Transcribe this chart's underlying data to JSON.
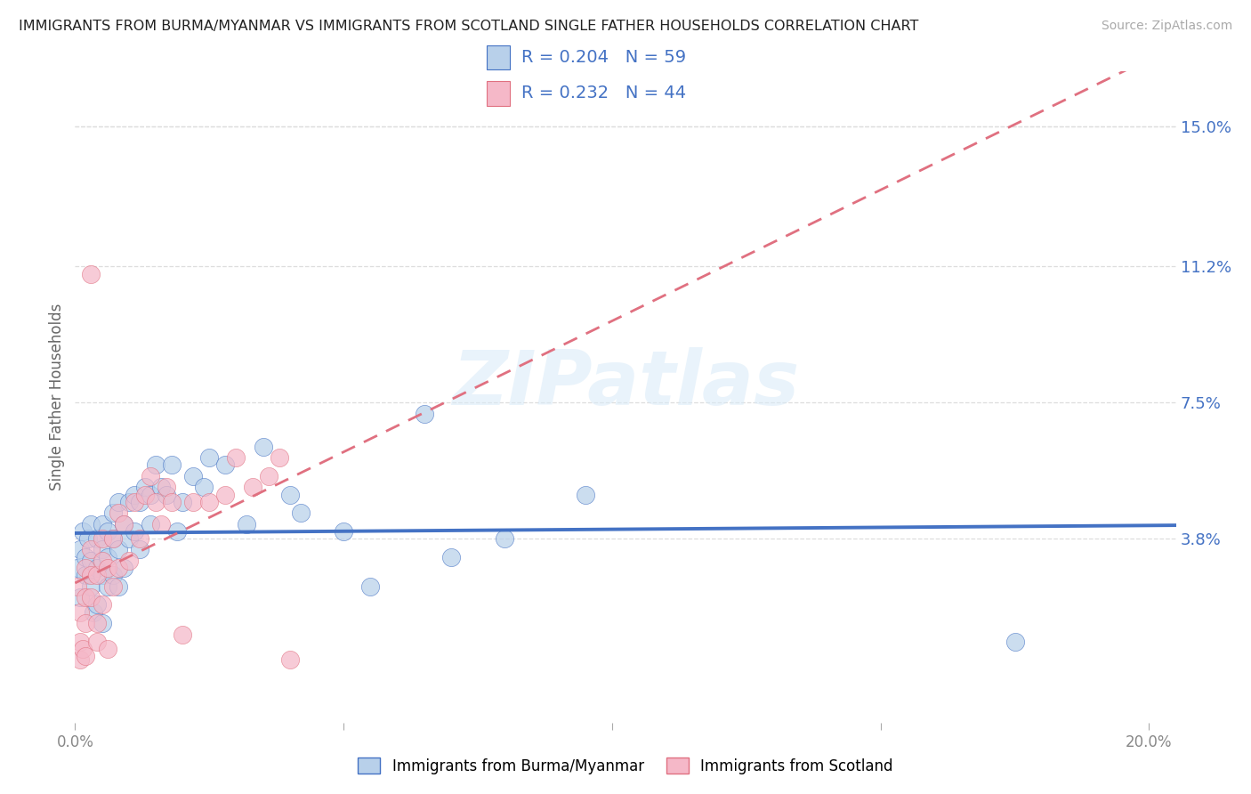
{
  "title": "IMMIGRANTS FROM BURMA/MYANMAR VS IMMIGRANTS FROM SCOTLAND SINGLE FATHER HOUSEHOLDS CORRELATION CHART",
  "source": "Source: ZipAtlas.com",
  "ylabel": "Single Father Households",
  "ytick_vals": [
    0.038,
    0.075,
    0.112,
    0.15
  ],
  "ytick_labels": [
    "3.8%",
    "7.5%",
    "11.2%",
    "15.0%"
  ],
  "xlim": [
    0.0,
    0.205
  ],
  "ylim": [
    -0.012,
    0.165
  ],
  "r_burma": 0.204,
  "n_burma": 59,
  "r_scotland": 0.232,
  "n_scotland": 44,
  "color_burma_fill": "#b8d0ea",
  "color_burma_edge": "#4472c4",
  "color_scotland_fill": "#f5b8c8",
  "color_scotland_edge": "#e07080",
  "color_burma_line": "#4472c4",
  "color_scotland_line": "#e07080",
  "legend_text_color": "#4472c4",
  "watermark_color": "#d8eaf8",
  "title_color": "#222222",
  "source_color": "#aaaaaa",
  "watermark": "ZIPatlas",
  "grid_color": "#dddddd",
  "burma_x": [
    0.0005,
    0.001,
    0.001,
    0.0015,
    0.002,
    0.002,
    0.0025,
    0.003,
    0.003,
    0.003,
    0.0035,
    0.004,
    0.004,
    0.004,
    0.005,
    0.005,
    0.005,
    0.005,
    0.006,
    0.006,
    0.006,
    0.007,
    0.007,
    0.007,
    0.008,
    0.008,
    0.008,
    0.009,
    0.009,
    0.01,
    0.01,
    0.011,
    0.011,
    0.012,
    0.012,
    0.013,
    0.014,
    0.014,
    0.015,
    0.016,
    0.017,
    0.018,
    0.019,
    0.02,
    0.022,
    0.024,
    0.025,
    0.028,
    0.032,
    0.035,
    0.04,
    0.042,
    0.05,
    0.055,
    0.065,
    0.07,
    0.08,
    0.095,
    0.175
  ],
  "burma_y": [
    0.03,
    0.035,
    0.022,
    0.04,
    0.028,
    0.033,
    0.038,
    0.025,
    0.042,
    0.032,
    0.018,
    0.03,
    0.038,
    0.02,
    0.035,
    0.028,
    0.042,
    0.015,
    0.04,
    0.033,
    0.025,
    0.045,
    0.038,
    0.028,
    0.048,
    0.035,
    0.025,
    0.042,
    0.03,
    0.048,
    0.038,
    0.05,
    0.04,
    0.048,
    0.035,
    0.052,
    0.05,
    0.042,
    0.058,
    0.052,
    0.05,
    0.058,
    0.04,
    0.048,
    0.055,
    0.052,
    0.06,
    0.058,
    0.042,
    0.063,
    0.05,
    0.045,
    0.04,
    0.025,
    0.072,
    0.033,
    0.038,
    0.05,
    0.01
  ],
  "scotland_x": [
    0.0005,
    0.001,
    0.001,
    0.001,
    0.0015,
    0.002,
    0.002,
    0.002,
    0.002,
    0.003,
    0.003,
    0.003,
    0.004,
    0.004,
    0.004,
    0.005,
    0.005,
    0.005,
    0.006,
    0.006,
    0.007,
    0.007,
    0.008,
    0.008,
    0.009,
    0.01,
    0.011,
    0.012,
    0.013,
    0.014,
    0.015,
    0.016,
    0.017,
    0.018,
    0.02,
    0.022,
    0.025,
    0.028,
    0.03,
    0.033,
    0.036,
    0.038,
    0.04,
    0.003
  ],
  "scotland_y": [
    0.025,
    0.018,
    0.01,
    0.005,
    0.008,
    0.03,
    0.015,
    0.022,
    0.006,
    0.028,
    0.035,
    0.022,
    0.028,
    0.015,
    0.01,
    0.032,
    0.02,
    0.038,
    0.03,
    0.008,
    0.038,
    0.025,
    0.03,
    0.045,
    0.042,
    0.032,
    0.048,
    0.038,
    0.05,
    0.055,
    0.048,
    0.042,
    0.052,
    0.048,
    0.012,
    0.048,
    0.048,
    0.05,
    0.06,
    0.052,
    0.055,
    0.06,
    0.005,
    0.11
  ]
}
